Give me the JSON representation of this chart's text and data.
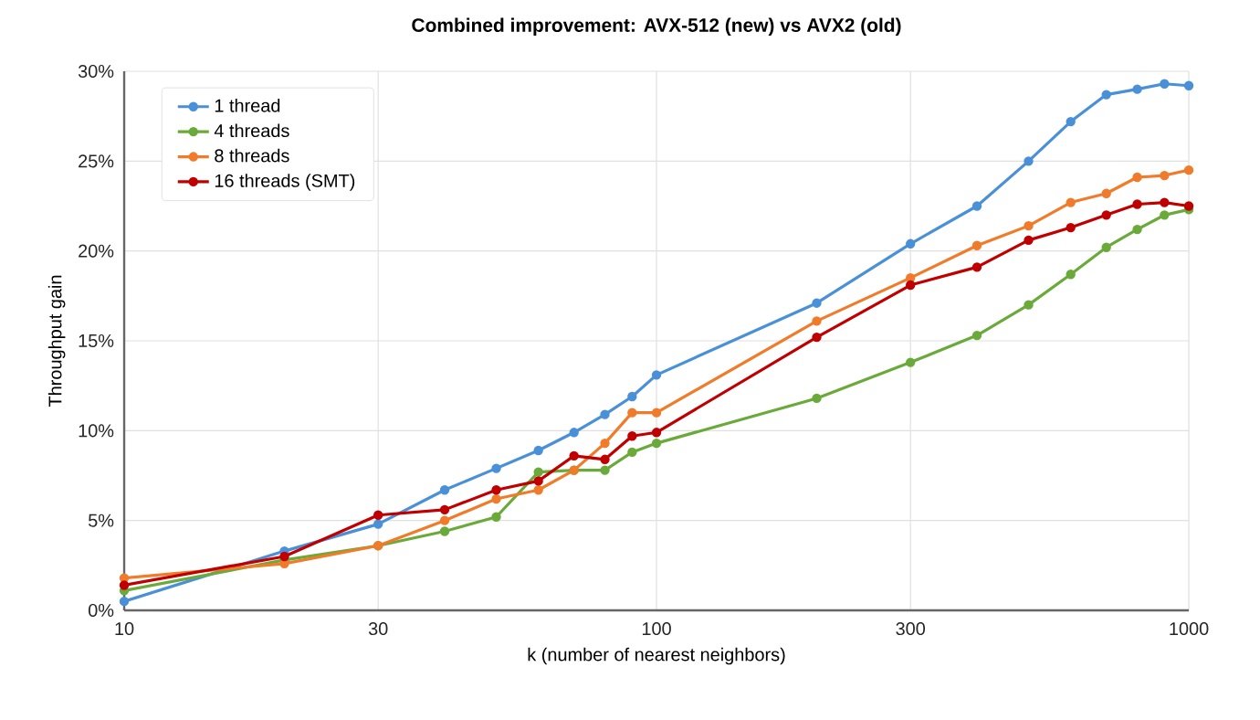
{
  "chart_data": {
    "type": "line",
    "title": "Combined improvement: AVX-512 (new) vs AVX2 (old)",
    "xlabel": "k (number of nearest neighbors)",
    "ylabel": "Throughput gain",
    "x": [
      10,
      20,
      30,
      40,
      50,
      60,
      70,
      80,
      90,
      100,
      200,
      300,
      400,
      500,
      600,
      700,
      800,
      900,
      1000
    ],
    "series": [
      {
        "name": "1 thread",
        "color": "#4a90d9",
        "values": [
          0.5,
          3.3,
          4.8,
          6.7,
          7.9,
          8.9,
          9.9,
          10.9,
          11.9,
          13.1,
          17.1,
          20.4,
          22.5,
          25.0,
          27.2,
          28.7,
          29.0,
          29.3,
          29.2
        ]
      },
      {
        "name": "4 threads",
        "color": "#6aaa3a",
        "values": [
          1.1,
          2.8,
          3.6,
          4.4,
          5.2,
          7.7,
          7.8,
          7.8,
          8.8,
          9.3,
          11.8,
          13.8,
          15.3,
          17.0,
          18.7,
          20.2,
          21.2,
          22.0,
          22.3
        ]
      },
      {
        "name": "8 threads",
        "color": "#f07b2a",
        "values": [
          1.8,
          2.6,
          3.6,
          5.0,
          6.2,
          6.7,
          7.8,
          9.3,
          11.0,
          11.0,
          16.1,
          18.5,
          20.3,
          21.4,
          22.7,
          23.2,
          24.1,
          24.2,
          24.5
        ]
      },
      {
        "name": "16 threads (SMT)",
        "color": "#c00000",
        "values": [
          1.4,
          3.0,
          5.3,
          5.6,
          6.7,
          7.2,
          8.6,
          8.4,
          9.7,
          9.9,
          15.2,
          18.1,
          19.1,
          20.6,
          21.3,
          22.0,
          22.6,
          22.7,
          22.5
        ]
      }
    ],
    "log": "x",
    "xlim": [
      10,
      1000
    ],
    "xticks": [
      10,
      30,
      100,
      300,
      1000
    ],
    "ylim": [
      0,
      30
    ],
    "yticks": [
      {
        "value": 0,
        "label": "0%"
      },
      {
        "value": 5,
        "label": "5%"
      },
      {
        "value": 10,
        "label": "10%"
      },
      {
        "value": 15,
        "label": "15%"
      },
      {
        "value": 20,
        "label": "20%"
      },
      {
        "value": 25,
        "label": "25%"
      },
      {
        "value": 30,
        "label": "30%"
      }
    ],
    "grid": true,
    "legend": "top left",
    "marker": "circle",
    "line_style": "solid"
  }
}
